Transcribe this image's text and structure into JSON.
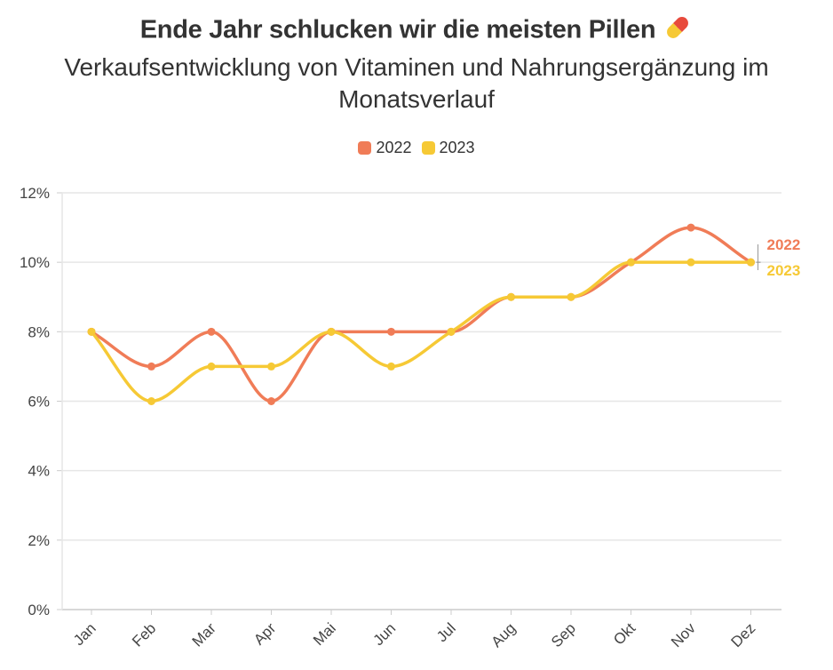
{
  "chart_data": {
    "type": "line",
    "title": "Ende Jahr schlucken wir die meisten Pillen",
    "subtitle": "Verkaufsentwicklung von Vitaminen und Nahrungsergänzung im Monatsverlauf",
    "categories": [
      "Jan",
      "Feb",
      "Mar",
      "Apr",
      "Mai",
      "Jun",
      "Jul",
      "Aug",
      "Sep",
      "Okt",
      "Nov",
      "Dez"
    ],
    "series": [
      {
        "name": "2022",
        "color": "#f07c57",
        "values": [
          8,
          7,
          8,
          6,
          8,
          8,
          8,
          9,
          9,
          10,
          11,
          10
        ]
      },
      {
        "name": "2023",
        "color": "#f6c935",
        "values": [
          8,
          6,
          7,
          7,
          8,
          7,
          8,
          9,
          9,
          10,
          10,
          10
        ]
      }
    ],
    "yticks": [
      "0%",
      "2%",
      "4%",
      "6%",
      "8%",
      "10%",
      "12%"
    ],
    "ylim": [
      0,
      12
    ],
    "grid": true,
    "legend": "top-center",
    "end_labels": [
      "2022",
      "2023"
    ],
    "title_icon": "pill-icon"
  }
}
